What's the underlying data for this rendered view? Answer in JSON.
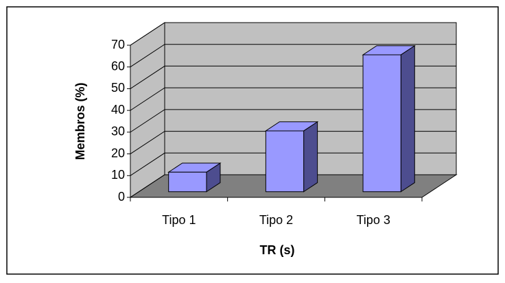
{
  "chart_data": {
    "type": "bar3d",
    "categories": [
      "Tipo 1",
      "Tipo 2",
      "Tipo 3"
    ],
    "values": [
      9,
      28,
      63
    ],
    "color": "#9999ff",
    "ylim": [
      0,
      70
    ],
    "yticks": [
      0,
      10,
      20,
      30,
      40,
      50,
      60,
      70
    ],
    "grid": true,
    "xlabel": "TR (s)",
    "ylabel": "Membros (%)"
  }
}
